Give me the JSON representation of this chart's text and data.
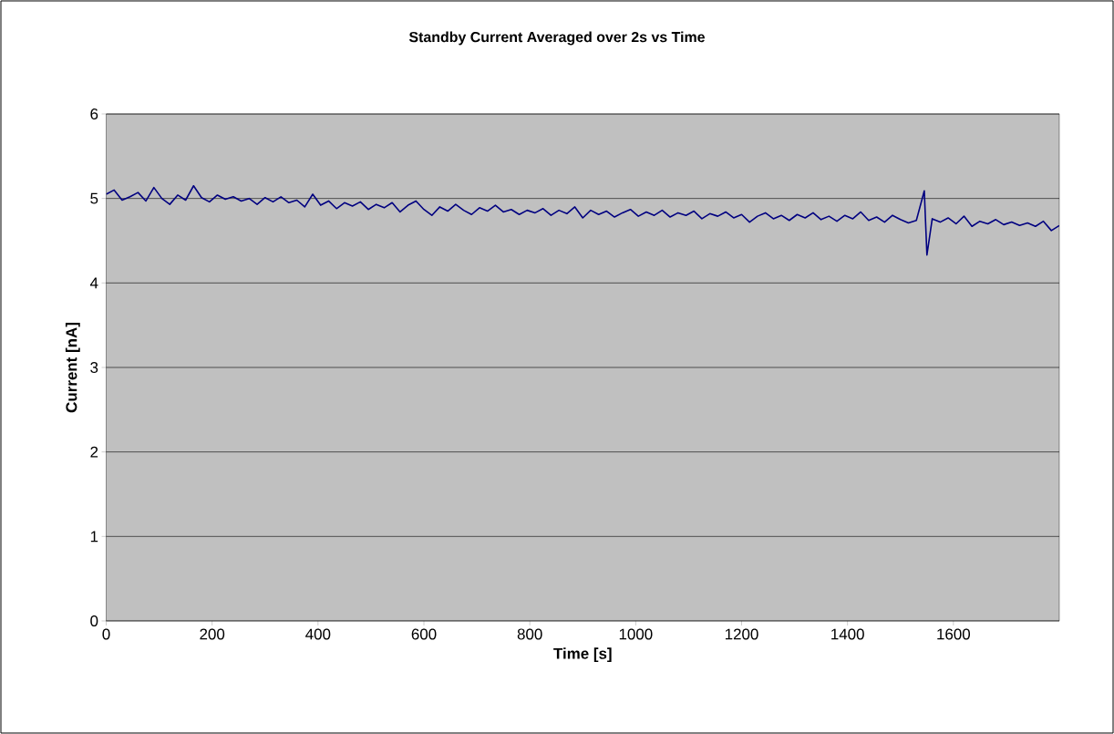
{
  "chart_data": {
    "type": "line",
    "title": "Standby Current Averaged over 2s vs Time",
    "xlabel": "Time [s]",
    "ylabel": "Current [nA]",
    "x": [
      0,
      15,
      30,
      45,
      60,
      75,
      90,
      105,
      120,
      135,
      150,
      165,
      180,
      195,
      210,
      225,
      240,
      255,
      270,
      285,
      300,
      315,
      330,
      345,
      360,
      375,
      390,
      405,
      420,
      435,
      450,
      465,
      480,
      495,
      510,
      525,
      540,
      555,
      570,
      585,
      600,
      615,
      630,
      645,
      660,
      675,
      690,
      705,
      720,
      735,
      750,
      765,
      780,
      795,
      810,
      825,
      840,
      855,
      870,
      885,
      900,
      915,
      930,
      945,
      960,
      975,
      990,
      1005,
      1020,
      1035,
      1050,
      1065,
      1080,
      1095,
      1110,
      1125,
      1140,
      1155,
      1170,
      1185,
      1200,
      1215,
      1230,
      1245,
      1260,
      1275,
      1290,
      1305,
      1320,
      1335,
      1350,
      1365,
      1380,
      1395,
      1410,
      1425,
      1440,
      1455,
      1470,
      1485,
      1500,
      1515,
      1530,
      1545,
      1550,
      1560,
      1575,
      1590,
      1605,
      1620,
      1635,
      1650,
      1665,
      1680,
      1695,
      1710,
      1725,
      1740,
      1755,
      1770,
      1785,
      1800
    ],
    "series": [
      {
        "color": "#000080",
        "values": [
          5.05,
          5.1,
          4.98,
          5.02,
          5.07,
          4.97,
          5.13,
          5.0,
          4.93,
          5.04,
          4.98,
          5.15,
          5.01,
          4.96,
          5.04,
          4.99,
          5.02,
          4.97,
          5.0,
          4.93,
          5.01,
          4.96,
          5.02,
          4.95,
          4.98,
          4.9,
          5.05,
          4.92,
          4.97,
          4.88,
          4.95,
          4.91,
          4.96,
          4.87,
          4.93,
          4.89,
          4.95,
          4.84,
          4.92,
          4.97,
          4.87,
          4.8,
          4.9,
          4.85,
          4.93,
          4.86,
          4.81,
          4.89,
          4.85,
          4.92,
          4.84,
          4.87,
          4.81,
          4.86,
          4.83,
          4.88,
          4.8,
          4.86,
          4.82,
          4.9,
          4.77,
          4.86,
          4.81,
          4.85,
          4.78,
          4.83,
          4.87,
          4.79,
          4.84,
          4.8,
          4.86,
          4.78,
          4.83,
          4.8,
          4.85,
          4.76,
          4.82,
          4.79,
          4.84,
          4.77,
          4.81,
          4.72,
          4.79,
          4.83,
          4.76,
          4.8,
          4.74,
          4.81,
          4.77,
          4.83,
          4.75,
          4.79,
          4.73,
          4.8,
          4.76,
          4.84,
          4.74,
          4.78,
          4.72,
          4.8,
          4.75,
          4.71,
          4.74,
          5.09,
          4.33,
          4.76,
          4.72,
          4.77,
          4.7,
          4.79,
          4.67,
          4.73,
          4.7,
          4.75,
          4.69,
          4.72,
          4.68,
          4.71,
          4.67,
          4.73,
          4.62,
          4.68
        ]
      }
    ],
    "xlim": [
      0,
      1800
    ],
    "xticks": [
      0,
      200,
      400,
      600,
      800,
      1000,
      1200,
      1400,
      1600
    ],
    "ylim": [
      0,
      6
    ],
    "yticks": [
      0,
      1,
      2,
      3,
      4,
      5,
      6
    ],
    "grid": "y",
    "marker": "none",
    "line_style": "solid"
  }
}
